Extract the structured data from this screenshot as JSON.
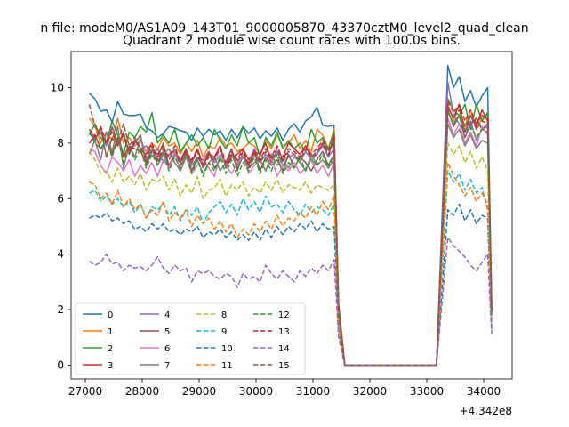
{
  "figure": {
    "suptitle": "n file: modeM0/AS1A09_143T01_9000005870_43370cztM0_level2_quad_clean"
  },
  "chart_data": {
    "type": "line",
    "title": "Quadrant 2 module wise count rates with 100.0s bins.",
    "xlabel": "",
    "ylabel": "",
    "x_offset_label": "+4.342e8",
    "x_offset_value": 434200000,
    "xlim": [
      26750,
      34500
    ],
    "ylim": [
      -0.5,
      11.3
    ],
    "xticks": [
      27000,
      28000,
      29000,
      30000,
      31000,
      32000,
      33000,
      34000
    ],
    "yticks": [
      0,
      2,
      4,
      6,
      8,
      10
    ],
    "grid": false,
    "legend_position": "lower-left",
    "legend_columns": 4,
    "x": [
      27070,
      27170,
      27270,
      27370,
      27470,
      27570,
      27670,
      27770,
      27870,
      27970,
      28070,
      28170,
      28270,
      28370,
      28470,
      28570,
      28670,
      28770,
      28870,
      28970,
      29070,
      29170,
      29270,
      29370,
      29470,
      29570,
      29670,
      29770,
      29870,
      29970,
      30070,
      30170,
      30270,
      30370,
      30470,
      30570,
      30670,
      30770,
      30870,
      30970,
      31070,
      31170,
      31270,
      31370,
      31450,
      31560,
      33170,
      33370,
      33470,
      33570,
      33670,
      33770,
      33870,
      33970,
      34070,
      34140
    ],
    "series": [
      {
        "name": "0",
        "color": "#1f77b4",
        "dash": "solid",
        "values": [
          9.8,
          9.6,
          9.15,
          9.2,
          8.75,
          9.5,
          9.05,
          9.0,
          9.0,
          9.05,
          8.55,
          8.45,
          8.2,
          8.35,
          8.6,
          8.55,
          8.45,
          8.4,
          8.1,
          8.55,
          8.25,
          8.5,
          8.3,
          8.45,
          8.1,
          8.5,
          8.2,
          8.6,
          8.35,
          8.55,
          8.15,
          8.45,
          8.25,
          8.55,
          8.1,
          8.5,
          8.7,
          8.4,
          8.8,
          8.95,
          9.3,
          8.65,
          8.6,
          8.65,
          2.2,
          0,
          0,
          10.8,
          10.0,
          10.4,
          9.5,
          9.9,
          9.3,
          9.7,
          10.0,
          2.2
        ]
      },
      {
        "name": "1",
        "color": "#ff7f0e",
        "dash": "solid",
        "values": [
          8.9,
          8.6,
          8.0,
          8.4,
          8.1,
          8.9,
          8.0,
          8.2,
          7.9,
          8.1,
          7.7,
          8.0,
          7.8,
          8.2,
          7.9,
          8.0,
          7.6,
          8.0,
          7.7,
          8.1,
          7.5,
          7.9,
          7.8,
          8.2,
          7.9,
          8.0,
          7.7,
          7.8,
          8.0,
          7.9,
          7.6,
          8.1,
          7.8,
          8.3,
          7.9,
          8.0,
          8.3,
          7.8,
          8.1,
          7.7,
          8.5,
          8.3,
          7.8,
          8.5,
          2.0,
          0,
          0,
          9.4,
          8.8,
          9.0,
          8.6,
          9.2,
          8.5,
          8.9,
          9.0,
          2.1
        ]
      },
      {
        "name": "2",
        "color": "#2ca02c",
        "dash": "solid",
        "values": [
          8.3,
          8.7,
          8.2,
          8.0,
          8.8,
          8.3,
          7.6,
          8.4,
          8.2,
          8.6,
          8.4,
          9.1,
          8.0,
          8.3,
          8.0,
          8.5,
          7.7,
          8.0,
          8.3,
          7.9,
          8.2,
          7.8,
          8.5,
          8.1,
          7.8,
          8.3,
          7.9,
          8.6,
          8.0,
          8.2,
          7.5,
          8.2,
          7.9,
          8.4,
          7.8,
          8.1,
          7.8,
          8.0,
          7.7,
          8.5,
          8.0,
          8.2,
          7.8,
          8.4,
          2.2,
          0,
          0,
          9.6,
          9.2,
          9.0,
          9.4,
          8.5,
          9.4,
          8.8,
          9.1,
          2.2
        ]
      },
      {
        "name": "3",
        "color": "#d62728",
        "dash": "solid",
        "values": [
          8.0,
          8.3,
          7.8,
          8.1,
          7.6,
          8.2,
          7.5,
          7.9,
          7.8,
          7.7,
          7.3,
          7.8,
          7.6,
          7.9,
          7.2,
          7.6,
          7.4,
          7.7,
          7.3,
          7.8,
          7.2,
          7.6,
          7.5,
          7.9,
          7.1,
          7.5,
          7.6,
          7.8,
          7.4,
          7.7,
          7.6,
          8.0,
          7.3,
          7.7,
          7.5,
          8.0,
          7.8,
          7.6,
          7.9,
          7.5,
          7.6,
          8.0,
          7.5,
          8.3,
          2.1,
          0,
          0,
          9.3,
          8.9,
          9.4,
          8.4,
          9.0,
          8.6,
          9.2,
          8.8,
          1.9
        ]
      },
      {
        "name": "4",
        "color": "#9467bd",
        "dash": "solid",
        "values": [
          8.5,
          8.2,
          8.4,
          7.9,
          8.6,
          8.0,
          8.3,
          7.7,
          8.1,
          7.8,
          7.9,
          7.5,
          7.8,
          7.3,
          7.6,
          7.7,
          7.4,
          7.8,
          7.2,
          7.5,
          7.4,
          7.7,
          7.3,
          7.6,
          7.2,
          7.6,
          7.1,
          7.5,
          7.3,
          7.8,
          7.3,
          7.6,
          7.4,
          7.7,
          7.2,
          7.5,
          7.6,
          7.3,
          7.7,
          7.4,
          7.6,
          7.9,
          7.5,
          7.8,
          2.0,
          0,
          0,
          10.2,
          9.0,
          8.7,
          8.4,
          8.8,
          8.1,
          8.5,
          8.6,
          1.8
        ]
      },
      {
        "name": "5",
        "color": "#8c564b",
        "dash": "solid",
        "values": [
          8.4,
          8.1,
          8.6,
          7.5,
          8.2,
          7.9,
          8.4,
          7.6,
          8.0,
          8.3,
          7.2,
          7.7,
          7.5,
          8.0,
          7.1,
          7.6,
          7.3,
          7.8,
          7.0,
          7.5,
          7.2,
          7.7,
          7.1,
          7.4,
          7.3,
          7.8,
          7.0,
          7.6,
          7.2,
          7.7,
          7.0,
          7.5,
          7.2,
          7.4,
          7.0,
          7.6,
          7.1,
          7.5,
          7.3,
          7.0,
          7.4,
          7.7,
          7.2,
          7.6,
          1.9,
          0,
          0,
          9.2,
          8.6,
          9.0,
          8.2,
          8.7,
          8.9,
          8.5,
          8.7,
          1.9
        ]
      },
      {
        "name": "6",
        "color": "#e377c2",
        "dash": "solid",
        "values": [
          7.8,
          7.7,
          7.2,
          6.9,
          7.5,
          7.3,
          7.0,
          7.4,
          6.8,
          7.2,
          6.9,
          7.3,
          6.8,
          7.4,
          7.1,
          7.7,
          7.0,
          7.5,
          6.9,
          7.2,
          7.4,
          7.1,
          6.8,
          7.6,
          7.2,
          6.9,
          7.3,
          7.6,
          6.9,
          7.2,
          7.4,
          7.0,
          7.5,
          6.8,
          7.2,
          7.0,
          7.3,
          6.9,
          7.1,
          7.4,
          6.9,
          7.2,
          6.8,
          7.3,
          1.9,
          0,
          0,
          8.9,
          8.3,
          8.7,
          8.0,
          8.4,
          7.9,
          8.6,
          8.3,
          1.9
        ]
      },
      {
        "name": "7",
        "color": "#7f7f7f",
        "dash": "solid",
        "values": [
          7.6,
          8.1,
          7.4,
          8.4,
          7.7,
          8.6,
          7.1,
          7.9,
          7.5,
          8.2,
          7.4,
          7.8,
          7.2,
          7.6,
          7.8,
          7.3,
          7.0,
          7.5,
          7.2,
          7.4,
          6.9,
          7.3,
          7.5,
          7.0,
          7.3,
          7.6,
          7.2,
          7.5,
          7.1,
          7.3,
          7.4,
          7.0,
          7.6,
          7.2,
          7.4,
          7.1,
          7.5,
          7.3,
          7.0,
          7.6,
          7.2,
          7.4,
          7.1,
          7.4,
          1.9,
          0,
          0,
          8.7,
          8.2,
          8.5,
          7.9,
          8.3,
          7.8,
          8.1,
          8.0,
          1.8
        ]
      },
      {
        "name": "8",
        "color": "#bcbd22",
        "dash": "dashed",
        "values": [
          7.7,
          7.4,
          6.9,
          7.0,
          6.6,
          7.1,
          6.6,
          6.8,
          6.5,
          6.9,
          6.3,
          6.7,
          6.6,
          6.8,
          6.3,
          6.7,
          6.1,
          6.5,
          6.2,
          6.8,
          6.0,
          6.3,
          6.4,
          6.7,
          6.1,
          6.5,
          6.3,
          6.6,
          6.1,
          6.4,
          6.2,
          6.6,
          6.3,
          6.7,
          6.2,
          6.5,
          6.4,
          6.3,
          6.6,
          6.2,
          6.5,
          6.4,
          6.3,
          6.5,
          1.7,
          0,
          0,
          8.0,
          7.6,
          7.9,
          7.3,
          7.7,
          7.1,
          7.5,
          7.0,
          1.6
        ]
      },
      {
        "name": "9",
        "color": "#17becf",
        "dash": "dashed",
        "values": [
          6.2,
          6.3,
          5.9,
          6.1,
          5.8,
          6.0,
          5.7,
          5.9,
          5.5,
          5.8,
          5.3,
          5.7,
          5.6,
          5.8,
          5.4,
          5.7,
          5.2,
          5.6,
          5.4,
          5.7,
          5.1,
          5.5,
          5.7,
          5.9,
          5.5,
          5.8,
          5.4,
          6.0,
          5.6,
          5.9,
          5.5,
          6.1,
          5.7,
          5.8,
          5.5,
          5.9,
          5.6,
          5.4,
          5.8,
          5.5,
          5.7,
          5.6,
          5.4,
          5.8,
          1.5,
          0,
          0,
          7.0,
          6.6,
          6.9,
          6.3,
          6.7,
          6.2,
          6.4,
          5.6,
          1.4
        ]
      },
      {
        "name": "10",
        "color": "#1f77b4",
        "dash": "dashed",
        "values": [
          5.3,
          5.4,
          5.3,
          5.5,
          5.2,
          5.3,
          5.1,
          5.2,
          4.9,
          5.0,
          4.8,
          5.1,
          4.9,
          5.1,
          4.8,
          4.9,
          4.7,
          4.9,
          4.8,
          5.0,
          4.6,
          4.8,
          4.7,
          4.9,
          4.6,
          4.8,
          4.5,
          4.7,
          4.5,
          4.8,
          4.5,
          4.9,
          4.6,
          5.0,
          4.7,
          5.0,
          4.8,
          5.1,
          4.9,
          5.2,
          4.8,
          5.1,
          4.9,
          5.0,
          1.3,
          0,
          0,
          5.6,
          5.4,
          5.8,
          5.2,
          5.6,
          5.1,
          5.4,
          5.3,
          1.2
        ]
      },
      {
        "name": "11",
        "color": "#ff7f0e",
        "dash": "dashed",
        "values": [
          6.6,
          6.5,
          6.0,
          6.2,
          5.8,
          6.3,
          5.7,
          6.0,
          5.6,
          5.8,
          5.3,
          5.6,
          5.4,
          5.9,
          5.2,
          5.5,
          5.3,
          5.6,
          5.0,
          5.4,
          5.1,
          5.3,
          4.9,
          5.2,
          4.8,
          5.1,
          4.6,
          4.9,
          4.7,
          5.1,
          4.8,
          5.2,
          4.9,
          5.4,
          5.0,
          5.3,
          5.2,
          5.5,
          5.3,
          5.7,
          5.4,
          5.9,
          5.6,
          6.1,
          1.4,
          0,
          0,
          7.3,
          6.8,
          6.5,
          6.1,
          6.4,
          5.9,
          6.2,
          5.8,
          1.5
        ]
      },
      {
        "name": "12",
        "color": "#2ca02c",
        "dash": "dashed",
        "values": [
          8.4,
          8.0,
          7.8,
          8.1,
          7.5,
          8.2,
          7.3,
          7.9,
          7.4,
          7.8,
          7.1,
          7.6,
          7.2,
          7.7,
          7.0,
          7.5,
          7.1,
          7.6,
          6.9,
          7.4,
          6.8,
          7.3,
          7.0,
          7.5,
          6.9,
          7.4,
          6.8,
          7.3,
          7.0,
          7.5,
          6.9,
          7.4,
          7.0,
          7.6,
          6.9,
          7.3,
          7.1,
          7.5,
          7.0,
          7.4,
          7.2,
          7.6,
          7.1,
          7.6,
          1.9,
          0,
          0,
          9.1,
          8.7,
          9.0,
          8.4,
          8.6,
          8.2,
          8.5,
          8.4,
          1.8
        ]
      },
      {
        "name": "13",
        "color": "#d62728",
        "dash": "dashed",
        "values": [
          8.5,
          8.2,
          8.6,
          8.0,
          8.4,
          7.9,
          8.3,
          7.7,
          8.1,
          7.8,
          7.6,
          8.0,
          7.4,
          7.8,
          7.5,
          7.9,
          7.3,
          7.7,
          7.4,
          7.8,
          7.2,
          7.6,
          7.5,
          7.9,
          7.3,
          7.7,
          7.4,
          7.8,
          7.2,
          7.7,
          7.4,
          7.8,
          7.5,
          7.9,
          7.4,
          7.8,
          7.7,
          7.5,
          7.9,
          7.6,
          7.8,
          8.1,
          7.7,
          8.2,
          2.0,
          0,
          0,
          9.5,
          9.1,
          9.4,
          8.8,
          9.2,
          8.7,
          9.0,
          8.9,
          2.0
        ]
      },
      {
        "name": "14",
        "color": "#9467bd",
        "dash": "dashed",
        "values": [
          3.75,
          3.6,
          3.7,
          4.0,
          3.65,
          3.7,
          3.4,
          3.6,
          3.5,
          3.55,
          3.4,
          3.6,
          3.9,
          3.5,
          3.3,
          3.6,
          3.4,
          3.5,
          3.0,
          3.4,
          3.3,
          3.4,
          3.2,
          3.1,
          3.3,
          3.2,
          2.8,
          3.3,
          3.1,
          3.2,
          3.0,
          3.6,
          3.3,
          3.1,
          3.4,
          3.2,
          3.0,
          3.4,
          3.2,
          3.5,
          3.3,
          3.6,
          3.4,
          3.8,
          1.0,
          0,
          0,
          4.6,
          4.3,
          4.1,
          3.9,
          3.6,
          3.4,
          3.7,
          4.0,
          1.1
        ]
      },
      {
        "name": "15",
        "color": "#8c564b",
        "dash": "dashed",
        "values": [
          9.4,
          8.6,
          8.3,
          8.1,
          8.5,
          8.0,
          8.7,
          7.9,
          8.2,
          7.8,
          7.5,
          7.9,
          7.3,
          7.7,
          7.4,
          7.8,
          7.2,
          7.6,
          7.3,
          7.7,
          7.1,
          7.5,
          7.4,
          7.8,
          7.2,
          7.6,
          7.3,
          7.7,
          7.1,
          7.6,
          7.3,
          7.7,
          7.4,
          7.8,
          7.3,
          7.7,
          7.6,
          7.4,
          7.8,
          7.5,
          7.7,
          8.0,
          7.6,
          8.1,
          2.0,
          0,
          0,
          9.3,
          8.9,
          9.2,
          8.6,
          9.0,
          8.5,
          8.8,
          8.7,
          1.9
        ]
      }
    ]
  }
}
